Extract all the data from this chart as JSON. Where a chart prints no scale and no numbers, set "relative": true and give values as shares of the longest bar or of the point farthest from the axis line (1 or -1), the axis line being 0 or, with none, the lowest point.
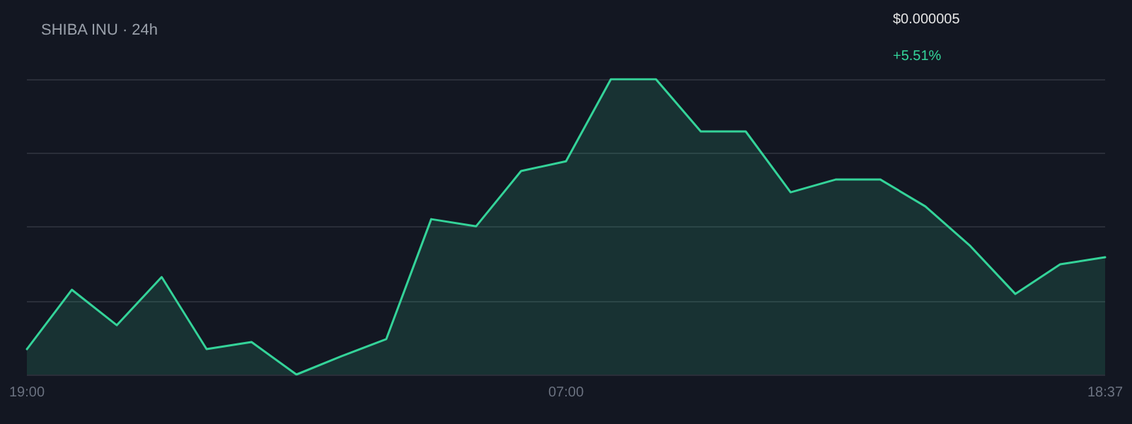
{
  "chart_data": {
    "type": "area",
    "title": "SHIBA INU · 24h",
    "annotations": [
      "$0.000005",
      "+5.51%"
    ],
    "relative": true,
    "grid": "y",
    "marker": "none",
    "line_style": "solid",
    "categories": [
      "19:00",
      null,
      null,
      null,
      null,
      null,
      null,
      null,
      null,
      null,
      null,
      null,
      "07:00",
      null,
      null,
      null,
      null,
      null,
      null,
      null,
      null,
      null,
      null,
      null,
      "18:37"
    ],
    "series": [
      {
        "color": "#34d399",
        "values": [
          0.086,
          0.287,
          0.167,
          0.33,
          0.086,
          0.11,
          0,
          0.062,
          0.12,
          0.526,
          0.502,
          0.689,
          0.722,
          1,
          1,
          0.823,
          0.823,
          0.617,
          0.66,
          0.66,
          0.569,
          0.435,
          0.273,
          0.373,
          0.397
        ]
      }
    ]
  }
}
